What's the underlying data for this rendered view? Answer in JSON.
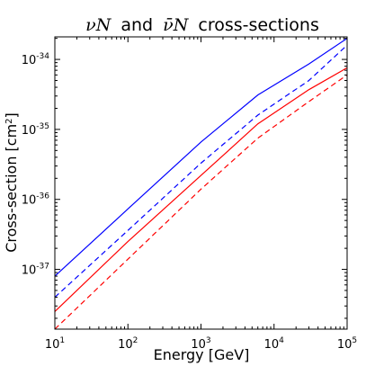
{
  "chart_data": {
    "type": "line",
    "title": {
      "prefix_math": "νN",
      "connector": "and",
      "mid_math": "ν̄N",
      "suffix": "cross-sections"
    },
    "xlabel": "Energy [GeV]",
    "ylabel": {
      "main": "Cross-section [cm",
      "exponent": "2",
      "close": "]"
    },
    "x_scale": "log",
    "y_scale": "log",
    "xlim": [
      10,
      100000
    ],
    "ylim": [
      1.4e-38,
      2.1e-34
    ],
    "grid": false,
    "x_ticks": [
      {
        "value": 10,
        "base": "10",
        "exp": "1"
      },
      {
        "value": 100,
        "base": "10",
        "exp": "2"
      },
      {
        "value": 1000,
        "base": "10",
        "exp": "3"
      },
      {
        "value": 10000,
        "base": "10",
        "exp": "4"
      },
      {
        "value": 100000,
        "base": "10",
        "exp": "5"
      }
    ],
    "y_ticks": [
      {
        "value": 1e-37,
        "base": "10",
        "exp": "-37"
      },
      {
        "value": 1e-36,
        "base": "10",
        "exp": "-36"
      },
      {
        "value": 1e-35,
        "base": "10",
        "exp": "-35"
      },
      {
        "value": 1e-34,
        "base": "10",
        "exp": "-34"
      }
    ],
    "x": [
      10,
      100,
      1000,
      6000,
      30000,
      100000
    ],
    "series": [
      {
        "color": "#0000ff",
        "dash": "solid",
        "values": [
          8e-38,
          7.3e-37,
          6.6e-36,
          3.1e-35,
          8.6e-35,
          2e-34
        ]
      },
      {
        "color": "#0000ff",
        "dash": "dashed",
        "values": [
          4e-38,
          3.6e-37,
          3.3e-36,
          1.6e-35,
          5e-35,
          1.6e-34
        ]
      },
      {
        "color": "#ff0000",
        "dash": "solid",
        "values": [
          2.5e-38,
          2.5e-37,
          2.2e-36,
          1.2e-35,
          3.7e-35,
          7.6e-35
        ]
      },
      {
        "color": "#ff0000",
        "dash": "dashed",
        "values": [
          1.4e-38,
          1.4e-37,
          1.4e-36,
          7.5e-36,
          2.5e-35,
          6e-35
        ]
      }
    ]
  }
}
